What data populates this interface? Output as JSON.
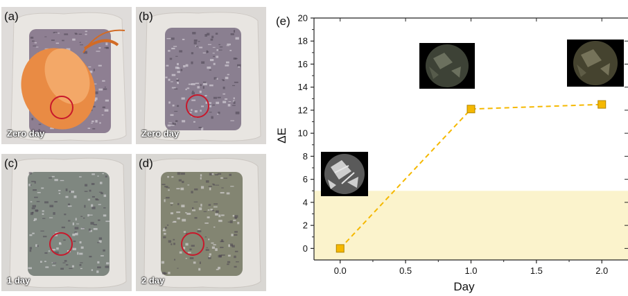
{
  "panels": [
    {
      "id": "a",
      "label": "(a)",
      "caption": "Zero day",
      "has_shrimp": true,
      "tint": "#8e7f92"
    },
    {
      "id": "b",
      "label": "(b)",
      "caption": "Zero day",
      "has_shrimp": false,
      "tint": "#8a7f90"
    },
    {
      "id": "c",
      "label": "(c)",
      "caption": "1 day",
      "has_shrimp": false,
      "tint": "#7f8780"
    },
    {
      "id": "d",
      "label": "(d)",
      "caption": "2 day",
      "has_shrimp": false,
      "tint": "#838572"
    }
  ],
  "chart_panel_label": "(e)",
  "chart_data": {
    "type": "line",
    "xlabel": "Day",
    "ylabel": "ΔE",
    "xlim": [
      -0.2,
      2.2
    ],
    "ylim": [
      -1,
      20
    ],
    "xticks": [
      "0.0",
      "0.5",
      "1.0",
      "1.5",
      "2.0"
    ],
    "yticks": [
      "0",
      "2",
      "4",
      "6",
      "8",
      "10",
      "12",
      "14",
      "16",
      "18",
      "20"
    ],
    "series": [
      {
        "x": [
          0.0,
          1.0,
          2.0
        ],
        "y": [
          0.0,
          12.1,
          12.5
        ],
        "color": "#f5b800",
        "line_style": "dashed",
        "marker": "square"
      }
    ],
    "threshold_band": {
      "y_min": -1,
      "y_max": 5,
      "color": "#fbf3cc"
    },
    "grid": false
  }
}
